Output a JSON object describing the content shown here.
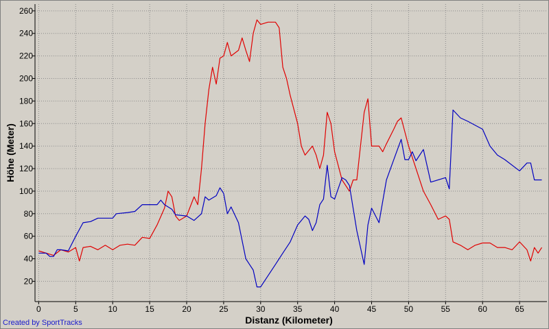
{
  "chart_data": {
    "type": "line",
    "title": "",
    "xlabel": "Distanz (Kilometer)",
    "ylabel": "Höhe (Meter)",
    "xlim": [
      -0.5,
      68.7
    ],
    "ylim": [
      2,
      266
    ],
    "xticks": [
      0,
      5,
      10,
      15,
      20,
      25,
      30,
      35,
      40,
      45,
      50,
      55,
      60,
      65
    ],
    "yticks": [
      20,
      40,
      60,
      80,
      100,
      120,
      140,
      160,
      180,
      200,
      220,
      240,
      260
    ],
    "grid": true,
    "series": [
      {
        "color": "#e00000",
        "points": [
          [
            0,
            47
          ],
          [
            1,
            45
          ],
          [
            2,
            43
          ],
          [
            3,
            48
          ],
          [
            4,
            46
          ],
          [
            5,
            50
          ],
          [
            5.5,
            38
          ],
          [
            6,
            50
          ],
          [
            7,
            51
          ],
          [
            8,
            48
          ],
          [
            9,
            52
          ],
          [
            10,
            48
          ],
          [
            11,
            52
          ],
          [
            12,
            53
          ],
          [
            13,
            52
          ],
          [
            14,
            59
          ],
          [
            15,
            58
          ],
          [
            16,
            70
          ],
          [
            17,
            85
          ],
          [
            17.5,
            100
          ],
          [
            18,
            95
          ],
          [
            18.5,
            78
          ],
          [
            19,
            74
          ],
          [
            20,
            78
          ],
          [
            21,
            95
          ],
          [
            21.5,
            88
          ],
          [
            22,
            120
          ],
          [
            22.5,
            160
          ],
          [
            23,
            190
          ],
          [
            23.5,
            210
          ],
          [
            24,
            195
          ],
          [
            24.5,
            218
          ],
          [
            25,
            220
          ],
          [
            25.5,
            232
          ],
          [
            26,
            220
          ],
          [
            27,
            225
          ],
          [
            27.5,
            236
          ],
          [
            28,
            225
          ],
          [
            28.5,
            215
          ],
          [
            29,
            240
          ],
          [
            29.5,
            252
          ],
          [
            30,
            248
          ],
          [
            31,
            250
          ],
          [
            32,
            250
          ],
          [
            32.5,
            245
          ],
          [
            33,
            210
          ],
          [
            33.5,
            200
          ],
          [
            34,
            185
          ],
          [
            35,
            160
          ],
          [
            35.5,
            140
          ],
          [
            36,
            132
          ],
          [
            37,
            140
          ],
          [
            37.5,
            132
          ],
          [
            38,
            120
          ],
          [
            38.5,
            132
          ],
          [
            39,
            170
          ],
          [
            39.5,
            160
          ],
          [
            40,
            135
          ],
          [
            41,
            110
          ],
          [
            42,
            100
          ],
          [
            42.5,
            110
          ],
          [
            43,
            110
          ],
          [
            44,
            170
          ],
          [
            44.5,
            182
          ],
          [
            45,
            140
          ],
          [
            46,
            140
          ],
          [
            46.5,
            135
          ],
          [
            47,
            142
          ],
          [
            48,
            155
          ],
          [
            48.5,
            162
          ],
          [
            49,
            165
          ],
          [
            50,
            140
          ],
          [
            50.5,
            130
          ],
          [
            51,
            120
          ],
          [
            52,
            100
          ],
          [
            53,
            88
          ],
          [
            54,
            75
          ],
          [
            55,
            78
          ],
          [
            55.5,
            75
          ],
          [
            56,
            55
          ],
          [
            57,
            52
          ],
          [
            58,
            48
          ],
          [
            59,
            52
          ],
          [
            60,
            54
          ],
          [
            61,
            54
          ],
          [
            62,
            50
          ],
          [
            63,
            50
          ],
          [
            64,
            48
          ],
          [
            65,
            55
          ],
          [
            66,
            48
          ],
          [
            66.5,
            38
          ],
          [
            67,
            50
          ],
          [
            67.5,
            45
          ],
          [
            68,
            50
          ]
        ]
      },
      {
        "color": "#0000c0",
        "points": [
          [
            0,
            45
          ],
          [
            1,
            45
          ],
          [
            1.5,
            42
          ],
          [
            2,
            42
          ],
          [
            2.5,
            48
          ],
          [
            3,
            48
          ],
          [
            4,
            47
          ],
          [
            5,
            60
          ],
          [
            6,
            72
          ],
          [
            7,
            73
          ],
          [
            8,
            76
          ],
          [
            10,
            76
          ],
          [
            10.5,
            80
          ],
          [
            12,
            81
          ],
          [
            13,
            82
          ],
          [
            14,
            88
          ],
          [
            16,
            88
          ],
          [
            16.5,
            92
          ],
          [
            17,
            88
          ],
          [
            18,
            84
          ],
          [
            18.5,
            79
          ],
          [
            20,
            78
          ],
          [
            21,
            74
          ],
          [
            22,
            80
          ],
          [
            22.5,
            95
          ],
          [
            23,
            92
          ],
          [
            24,
            96
          ],
          [
            24.5,
            103
          ],
          [
            25,
            98
          ],
          [
            25.5,
            80
          ],
          [
            26,
            86
          ],
          [
            27,
            72
          ],
          [
            28,
            40
          ],
          [
            28.5,
            35
          ],
          [
            29,
            30
          ],
          [
            29.5,
            15
          ],
          [
            30,
            15
          ],
          [
            31,
            25
          ],
          [
            32,
            35
          ],
          [
            33,
            45
          ],
          [
            34,
            55
          ],
          [
            35,
            70
          ],
          [
            36,
            78
          ],
          [
            36.5,
            75
          ],
          [
            37,
            65
          ],
          [
            37.5,
            72
          ],
          [
            38,
            88
          ],
          [
            38.5,
            93
          ],
          [
            39,
            123
          ],
          [
            39.5,
            95
          ],
          [
            40,
            93
          ],
          [
            41,
            112
          ],
          [
            41.5,
            110
          ],
          [
            42,
            105
          ],
          [
            43,
            65
          ],
          [
            44,
            35
          ],
          [
            44.5,
            70
          ],
          [
            45,
            85
          ],
          [
            46,
            72
          ],
          [
            47,
            110
          ],
          [
            48,
            128
          ],
          [
            49,
            146
          ],
          [
            49.5,
            128
          ],
          [
            50,
            128
          ],
          [
            50.5,
            135
          ],
          [
            51,
            127
          ],
          [
            52,
            137
          ],
          [
            53,
            108
          ],
          [
            55,
            112
          ],
          [
            55.5,
            102
          ],
          [
            56,
            172
          ],
          [
            57,
            165
          ],
          [
            58,
            162
          ],
          [
            60,
            155
          ],
          [
            61,
            140
          ],
          [
            62,
            132
          ],
          [
            63,
            128
          ],
          [
            65,
            118
          ],
          [
            66,
            125
          ],
          [
            66.5,
            125
          ],
          [
            67,
            110
          ],
          [
            68,
            110
          ]
        ]
      }
    ]
  },
  "footer": {
    "credit": "Created by SportTracks"
  }
}
